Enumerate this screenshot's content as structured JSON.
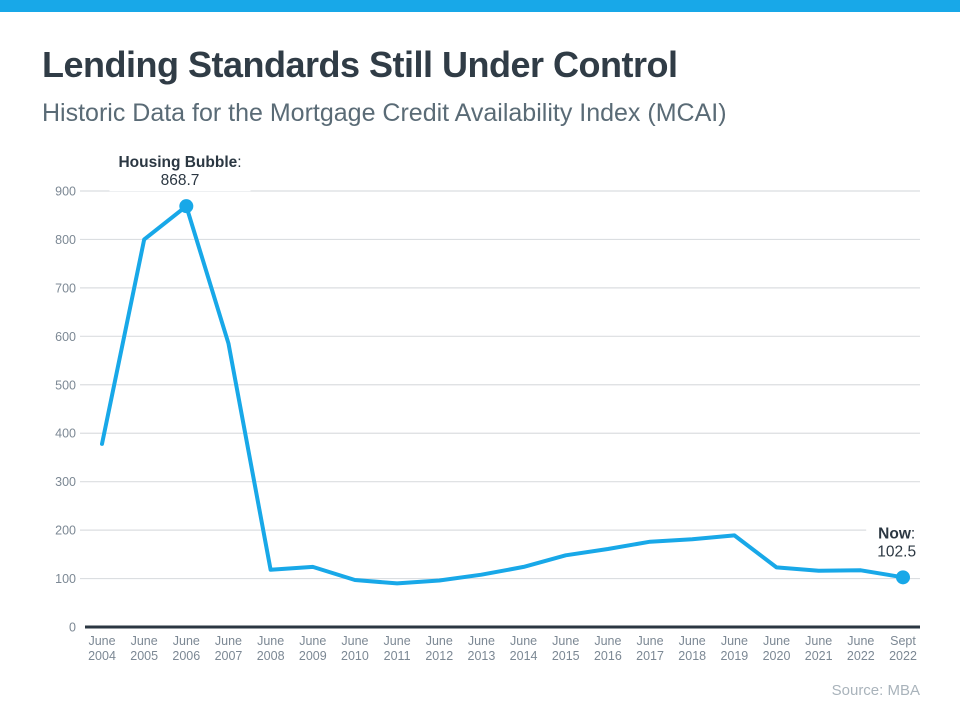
{
  "page": {
    "title": "Lending Standards Still Under Control",
    "subtitle": "Historic Data for the Mortgage Credit Availability Index (MCAI)",
    "source": "Source: MBA"
  },
  "colors": {
    "accent": "#18A8E8",
    "title": "#303C46",
    "subtitle": "#5A6B76",
    "grid": "#DBDEE1",
    "axis": "#2B3742",
    "tick_label": "#7C8894",
    "annotation": "#2B3742",
    "source": "#A9B3BB"
  },
  "chart_data": {
    "type": "line",
    "title": "Lending Standards Still Under Control",
    "subtitle": "Historic Data for the Mortgage Credit Availability Index (MCAI)",
    "series_name": "Mortgage Credit Availability Index (MCAI)",
    "categories": [
      "June 2004",
      "June 2005",
      "June 2006",
      "June 2007",
      "June 2008",
      "June 2009",
      "June 2010",
      "June 2011",
      "June 2012",
      "June 2013",
      "June 2014",
      "June 2015",
      "June 2016",
      "June 2017",
      "June 2018",
      "June 2019",
      "June 2020",
      "June 2021",
      "June 2022",
      "Sept 2022"
    ],
    "values": [
      378,
      800,
      868.7,
      585,
      118,
      124,
      97,
      90,
      96,
      108,
      124,
      148,
      161,
      176,
      181,
      189,
      123,
      116,
      117,
      102.5
    ],
    "xlabel": "",
    "ylabel": "",
    "ylim": [
      0,
      900
    ],
    "ytick_step": 100,
    "grid": "horizontal",
    "legend": "none",
    "annotations": [
      {
        "index": 2,
        "category": "June 2006",
        "label": "Housing Bubble",
        "value_text": "868.7",
        "marker": true
      },
      {
        "index": 19,
        "category": "Sept 2022",
        "label": "Now",
        "value_text": "102.5",
        "marker": true
      }
    ],
    "source": "Source: MBA"
  }
}
